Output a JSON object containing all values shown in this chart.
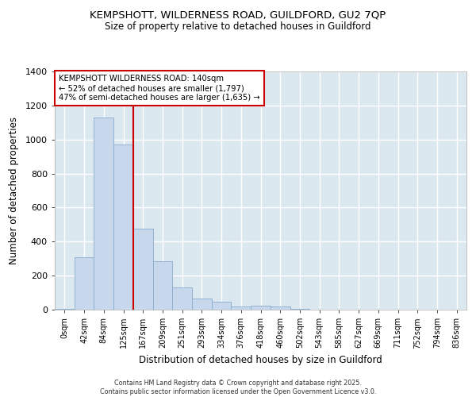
{
  "title_line1": "KEMPSHOTT, WILDERNESS ROAD, GUILDFORD, GU2 7QP",
  "title_line2": "Size of property relative to detached houses in Guildford",
  "xlabel": "Distribution of detached houses by size in Guildford",
  "ylabel": "Number of detached properties",
  "bin_labels": [
    "0sqm",
    "42sqm",
    "84sqm",
    "125sqm",
    "167sqm",
    "209sqm",
    "251sqm",
    "293sqm",
    "334sqm",
    "376sqm",
    "418sqm",
    "460sqm",
    "502sqm",
    "543sqm",
    "585sqm",
    "627sqm",
    "669sqm",
    "711sqm",
    "752sqm",
    "794sqm",
    "836sqm"
  ],
  "bar_values": [
    5,
    310,
    1130,
    970,
    475,
    285,
    130,
    65,
    45,
    18,
    22,
    20,
    5,
    0,
    0,
    0,
    0,
    0,
    0,
    0,
    0
  ],
  "bar_color": "#c8d8ec",
  "bar_edge_color": "#8aabcc",
  "red_line_x": 3.5,
  "annotation_line1": "KEMPSHOTT WILDERNESS ROAD: 140sqm",
  "annotation_line2": "← 52% of detached houses are smaller (1,797)",
  "annotation_line3": "47% of semi-detached houses are larger (1,635) →",
  "annotation_box_facecolor": "#ffffff",
  "annotation_box_edgecolor": "#cc0000",
  "vline_color": "#cc0000",
  "ylim": [
    0,
    1400
  ],
  "yticks": [
    0,
    200,
    400,
    600,
    800,
    1000,
    1200,
    1400
  ],
  "fig_bg_color": "#ffffff",
  "ax_bg_color": "#dce8f0",
  "grid_color": "#ffffff",
  "footer_line1": "Contains HM Land Registry data © Crown copyright and database right 2025.",
  "footer_line2": "Contains public sector information licensed under the Open Government Licence v3.0."
}
